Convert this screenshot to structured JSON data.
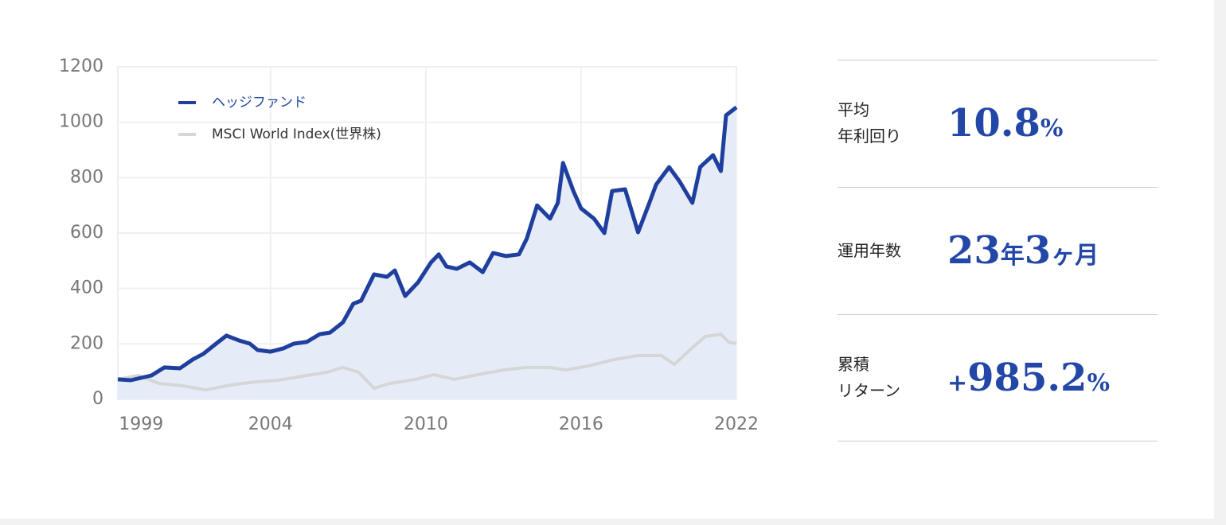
{
  "chart_data": {
    "type": "line",
    "xlim": [
      1998.1,
      2022
    ],
    "xticks": [
      1999,
      2004,
      2010,
      2016,
      2022
    ],
    "ylim": [
      0,
      1200
    ],
    "yticks": [
      0,
      200,
      400,
      600,
      800,
      1000,
      1200
    ],
    "grid": true,
    "legend": "top-left",
    "area_fill": "#e6ecf7",
    "series": [
      {
        "name": "ヘッジファンド",
        "color": "#1f3f9f",
        "fill": true,
        "x": [
          1998.1,
          1998.6,
          1999.4,
          1999.9,
          2000.5,
          2001.0,
          2001.4,
          2001.9,
          2002.3,
          2002.8,
          2003.2,
          2003.5,
          2004.0,
          2004.5,
          2004.9,
          2005.4,
          2005.9,
          2006.3,
          2006.8,
          2007.2,
          2007.5,
          2008.0,
          2008.5,
          2008.8,
          2009.2,
          2009.7,
          2010.2,
          2010.5,
          2010.8,
          2011.2,
          2011.7,
          2012.2,
          2012.6,
          2013.1,
          2013.6,
          2013.9,
          2014.3,
          2014.8,
          2015.1,
          2015.3,
          2015.7,
          2016.0,
          2016.5,
          2016.9,
          2017.2,
          2017.7,
          2018.2,
          2018.6,
          2018.9,
          2019.4,
          2019.8,
          2020.3,
          2020.6,
          2021.1,
          2021.4,
          2021.6,
          2022.0
        ],
        "values": [
          72,
          69,
          86,
          115,
          112,
          144,
          164,
          201,
          230,
          212,
          201,
          178,
          172,
          184,
          201,
          207,
          235,
          241,
          278,
          345,
          356,
          451,
          442,
          465,
          373,
          422,
          494,
          523,
          479,
          471,
          494,
          459,
          528,
          517,
          523,
          580,
          700,
          652,
          709,
          853,
          752,
          689,
          652,
          600,
          752,
          758,
          603,
          700,
          775,
          838,
          787,
          709,
          838,
          881,
          824,
          1025,
          1054
        ]
      },
      {
        "name": "MSCI World Index(世界株)",
        "color": "#d6d6d6",
        "x": [
          1998.1,
          1998.9,
          1999.7,
          2000.6,
          2001.5,
          2002.5,
          2003.4,
          2004.3,
          2005.2,
          2006.2,
          2006.8,
          2007.4,
          2008.0,
          2008.6,
          2009.6,
          2010.3,
          2011.1,
          2012.0,
          2013.0,
          2013.9,
          2014.8,
          2015.4,
          2016.3,
          2017.3,
          2018.2,
          2019.1,
          2019.6,
          2020.2,
          2020.8,
          2021.4,
          2021.7,
          2022.0
        ],
        "values": [
          72,
          86,
          57,
          49,
          34,
          52,
          63,
          69,
          83,
          98,
          115,
          98,
          40,
          57,
          72,
          89,
          72,
          89,
          106,
          115,
          115,
          106,
          121,
          144,
          158,
          158,
          126,
          178,
          227,
          235,
          207,
          201
        ]
      }
    ]
  },
  "stats": [
    {
      "label": [
        "平均",
        "年利回り"
      ],
      "value": [
        "10.8",
        "%"
      ]
    },
    {
      "label": [
        "運用年数"
      ],
      "value": [
        "23",
        "年",
        "3",
        "ヶ",
        "月"
      ]
    },
    {
      "label": [
        "累積",
        "リターン"
      ],
      "value": [
        "+",
        "985.2",
        "%"
      ]
    }
  ]
}
